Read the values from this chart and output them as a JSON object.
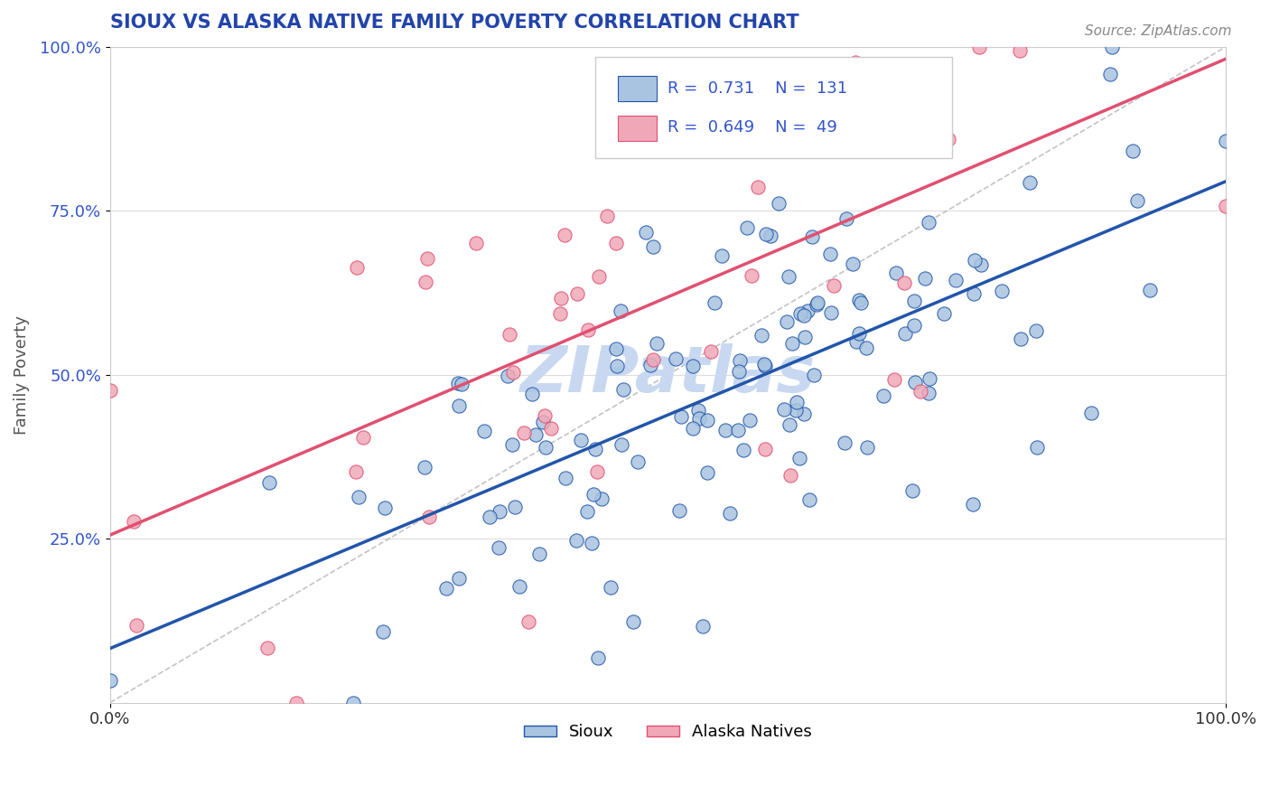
{
  "title": "SIOUX VS ALASKA NATIVE FAMILY POVERTY CORRELATION CHART",
  "source_text": "Source: ZipAtlas.com",
  "ylabel": "Family Poverty",
  "sioux_R": 0.731,
  "sioux_N": 131,
  "alaska_R": 0.649,
  "alaska_N": 49,
  "sioux_color": "#a8c4e0",
  "sioux_line_color": "#2255aa",
  "alaska_color": "#f0a8b8",
  "alaska_line_color": "#e05070",
  "legend_text_color": "#3355cc",
  "title_color": "#2244aa",
  "watermark_color": "#c8d8f0",
  "background_color": "#ffffff",
  "grid_color": "#dddddd",
  "xlim": [
    0.0,
    1.0
  ],
  "ylim": [
    0.0,
    1.0
  ]
}
